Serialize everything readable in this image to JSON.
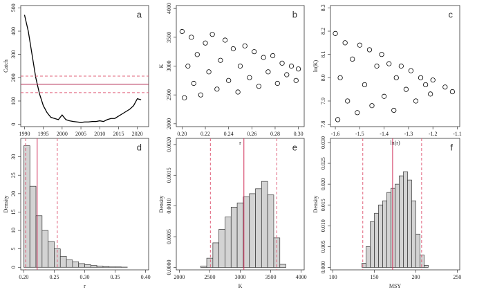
{
  "chart_data": [
    {
      "type": "line",
      "panel_label": "a",
      "ylabel": "Catch",
      "color": "#000000",
      "x": [
        1990,
        1991,
        1992,
        1993,
        1994,
        1995,
        1996,
        1997,
        1998,
        1999,
        2000,
        2001,
        2002,
        2003,
        2004,
        2005,
        2006,
        2007,
        2008,
        2009,
        2010,
        2011,
        2012,
        2013,
        2014,
        2015,
        2016,
        2017,
        2018,
        2019,
        2020,
        2021
      ],
      "values": [
        470,
        400,
        300,
        200,
        130,
        80,
        50,
        30,
        25,
        20,
        40,
        20,
        15,
        12,
        10,
        8,
        10,
        10,
        12,
        12,
        15,
        12,
        20,
        25,
        25,
        35,
        45,
        55,
        65,
        80,
        110,
        105
      ],
      "xlim": [
        1989,
        2023
      ],
      "xticks": [
        1990,
        1995,
        2000,
        2005,
        2010,
        2015,
        2020
      ],
      "ylim": [
        -10,
        510
      ],
      "yticks": [
        0,
        100,
        200,
        300,
        400,
        500
      ],
      "hlines": [
        {
          "value": 172,
          "style": "solid",
          "color": "#b0204a"
        },
        {
          "value": 207,
          "style": "dashed",
          "color": "#e0607a"
        },
        {
          "value": 136,
          "style": "dashed",
          "color": "#e0607a"
        }
      ]
    },
    {
      "type": "scatter",
      "panel_label": "b",
      "xlabel": "r",
      "ylabel": "K",
      "color": "#000000",
      "x": [
        0.2,
        0.202,
        0.205,
        0.208,
        0.21,
        0.213,
        0.216,
        0.22,
        0.223,
        0.226,
        0.23,
        0.233,
        0.237,
        0.24,
        0.244,
        0.248,
        0.25,
        0.254,
        0.258,
        0.262,
        0.266,
        0.27,
        0.274,
        0.278,
        0.282,
        0.286,
        0.29,
        0.294,
        0.298,
        0.3
      ],
      "values": [
        3600,
        2450,
        3000,
        3500,
        2700,
        3200,
        2500,
        3400,
        2900,
        3550,
        2600,
        3100,
        3450,
        2750,
        3300,
        2550,
        3000,
        3350,
        2800,
        3250,
        2650,
        3150,
        2900,
        3180,
        2700,
        3050,
        2850,
        3000,
        2750,
        2950
      ],
      "xlim": [
        0.195,
        0.305
      ],
      "xticks": [
        {
          "value": 0.2,
          "label": "0.20"
        },
        0.22,
        0.24,
        0.26,
        0.28,
        {
          "value": 0.3,
          "label": "0.30"
        }
      ],
      "ylim": [
        1950,
        4050
      ],
      "yticks": [
        2000,
        2500,
        3000,
        3500,
        4000
      ]
    },
    {
      "type": "scatter",
      "panel_label": "c",
      "xlabel": "ln(r)",
      "ylabel": "ln(K)",
      "color": "#000000",
      "x": [
        -1.6,
        -1.59,
        -1.58,
        -1.56,
        -1.55,
        -1.53,
        -1.51,
        -1.5,
        -1.48,
        -1.46,
        -1.45,
        -1.43,
        -1.41,
        -1.4,
        -1.38,
        -1.36,
        -1.35,
        -1.33,
        -1.31,
        -1.29,
        -1.27,
        -1.25,
        -1.23,
        -1.21,
        -1.2,
        -1.15,
        -1.12
      ],
      "values": [
        8.19,
        7.82,
        8.0,
        8.15,
        7.9,
        8.08,
        7.85,
        8.14,
        7.97,
        8.12,
        7.88,
        8.05,
        8.1,
        7.92,
        8.06,
        7.86,
        8.0,
        8.05,
        7.95,
        8.03,
        7.9,
        8.0,
        7.97,
        7.93,
        7.99,
        7.96,
        7.94
      ],
      "xlim": [
        -1.62,
        -1.09
      ],
      "xticks": [
        -1.6,
        -1.5,
        -1.4,
        -1.3,
        -1.2,
        -1.1
      ],
      "ylim": [
        7.79,
        8.31
      ],
      "yticks": [
        7.8,
        7.9,
        {
          "value": 8,
          "label": "8.0"
        },
        8.1,
        8.2,
        8.3
      ]
    },
    {
      "type": "histogram",
      "panel_label": "d",
      "xlabel": "r",
      "ylabel": "Density",
      "color": "#d3d3d3",
      "bins": [
        0.2,
        0.21,
        0.22,
        0.23,
        0.24,
        0.25,
        0.26,
        0.27,
        0.28,
        0.29,
        0.3,
        0.31,
        0.32,
        0.33,
        0.34,
        0.35,
        0.36,
        0.37
      ],
      "values": [
        33,
        22,
        14,
        10,
        7,
        5,
        3,
        2,
        1.5,
        1,
        0.7,
        0.5,
        0.3,
        0.2,
        0.1,
        0.1,
        0.05
      ],
      "xlim": [
        0.195,
        0.405
      ],
      "xticks": [
        {
          "value": 0.2,
          "label": "0.20"
        },
        0.25,
        {
          "value": 0.3,
          "label": "0.30"
        },
        0.35,
        {
          "value": 0.4,
          "label": "0.40"
        }
      ],
      "ylim": [
        -0.7,
        35
      ],
      "yticks": [
        0,
        5,
        10,
        15,
        20,
        25,
        30
      ],
      "vlines": [
        {
          "value": 0.222,
          "style": "solid",
          "color": "#d0305a"
        },
        {
          "value": 0.203,
          "style": "dashed",
          "color": "#e0607a"
        },
        {
          "value": 0.255,
          "style": "dashed",
          "color": "#e0607a"
        }
      ]
    },
    {
      "type": "histogram",
      "panel_label": "e",
      "xlabel": "K",
      "ylabel": "Density",
      "color": "#d3d3d3",
      "bins": [
        2350,
        2450,
        2550,
        2650,
        2750,
        2850,
        2950,
        3050,
        3150,
        3250,
        3350,
        3450,
        3550,
        3650,
        3750
      ],
      "values": [
        2e-05,
        0.00015,
        0.0004,
        0.00062,
        0.00082,
        0.00098,
        0.00105,
        0.00115,
        0.0012,
        0.00128,
        0.0014,
        0.00118,
        0.00048,
        5e-05
      ],
      "xlim": [
        1950,
        4050
      ],
      "xticks": [
        2000,
        2500,
        3000,
        3500,
        4000
      ],
      "ylim": [
        -4e-05,
        0.0021
      ],
      "yticks": [
        {
          "value": 0,
          "label": "0.0000"
        },
        {
          "value": 0.0005,
          "label": "0.0005"
        },
        {
          "value": 0.001,
          "label": "0.0010"
        },
        {
          "value": 0.0015,
          "label": "0.0015"
        },
        {
          "value": 0.002,
          "label": "0.0020"
        }
      ],
      "vlines": [
        {
          "value": 3060,
          "style": "solid",
          "color": "#d0305a"
        },
        {
          "value": 2510,
          "style": "dashed",
          "color": "#e0607a"
        },
        {
          "value": 3600,
          "style": "dashed",
          "color": "#e0607a"
        }
      ]
    },
    {
      "type": "histogram",
      "panel_label": "f",
      "xlabel": "MSY",
      "ylabel": "Density",
      "color": "#d3d3d3",
      "bins": [
        135,
        140,
        145,
        150,
        155,
        160,
        165,
        170,
        175,
        180,
        185,
        190,
        195,
        200,
        205,
        210,
        215
      ],
      "values": [
        0.001,
        0.005,
        0.011,
        0.013,
        0.015,
        0.016,
        0.018,
        0.019,
        0.02,
        0.022,
        0.023,
        0.021,
        0.016,
        0.008,
        0.003,
        0.0005
      ],
      "xlim": [
        97,
        253
      ],
      "xticks": [
        100,
        150,
        200,
        250
      ],
      "ylim": [
        -0.0006,
        0.031
      ],
      "yticks": [
        {
          "value": 0,
          "label": "0.000"
        },
        {
          "value": 0.005,
          "label": "0.005"
        },
        {
          "value": 0.01,
          "label": "0.010"
        },
        {
          "value": 0.015,
          "label": "0.015"
        },
        {
          "value": 0.02,
          "label": "0.020"
        },
        {
          "value": 0.025,
          "label": "0.025"
        },
        {
          "value": 0.03,
          "label": "0.030"
        }
      ],
      "vlines": [
        {
          "value": 172,
          "style": "solid",
          "color": "#d0305a"
        },
        {
          "value": 136,
          "style": "dashed",
          "color": "#e0607a"
        },
        {
          "value": 207,
          "style": "dashed",
          "color": "#e0607a"
        }
      ]
    }
  ]
}
